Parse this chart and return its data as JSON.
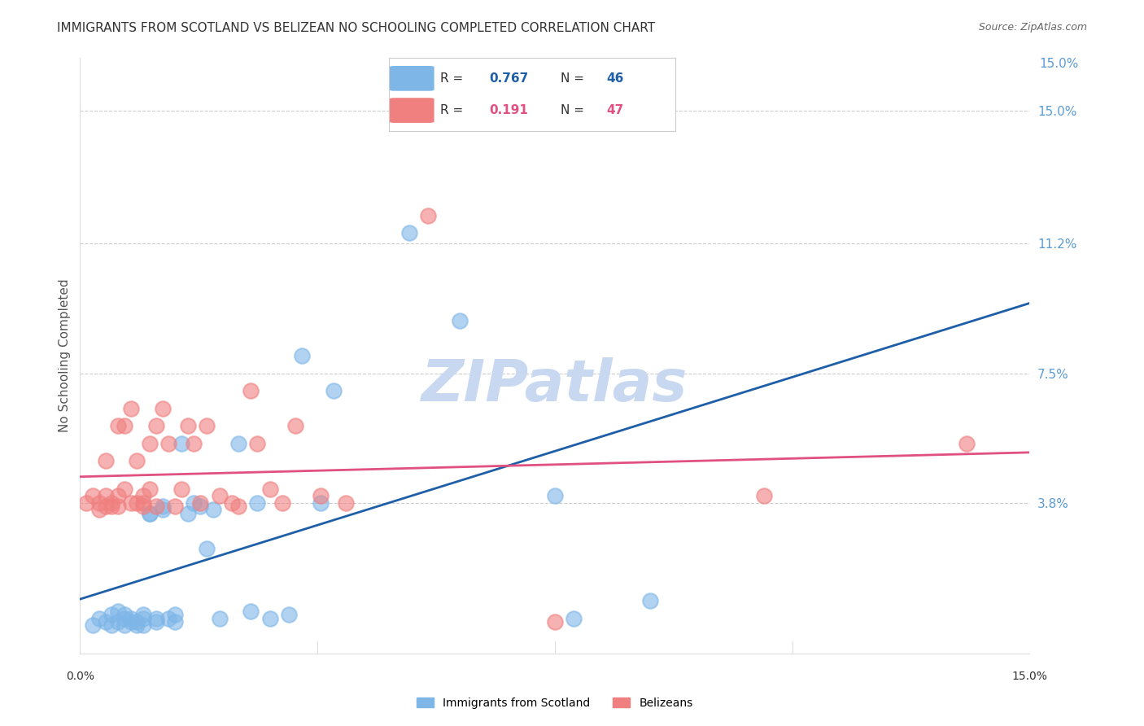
{
  "title": "IMMIGRANTS FROM SCOTLAND VS BELIZEAN NO SCHOOLING COMPLETED CORRELATION CHART",
  "source": "Source: ZipAtlas.com",
  "ylabel": "No Schooling Completed",
  "ytick_vals": [
    0.15,
    0.112,
    0.075,
    0.038
  ],
  "xlim": [
    0.0,
    0.15
  ],
  "ylim": [
    -0.005,
    0.165
  ],
  "legend_scotland_R": "0.767",
  "legend_scotland_N": "46",
  "legend_belize_R": "0.191",
  "legend_belize_N": "47",
  "scotland_color": "#7EB6E8",
  "belize_color": "#F08080",
  "scotland_line_color": "#1E5FA8",
  "belize_line_color": "#E05080",
  "dashed_line_color": "#A8C8E8",
  "grid_color": "#CCCCCC",
  "watermark_color": "#C8D8F0",
  "background_color": "#FFFFFF",
  "title_color": "#333333",
  "axis_label_color": "#555555",
  "right_tick_color": "#5B9BD5",
  "scotland_x": [
    0.002,
    0.003,
    0.004,
    0.005,
    0.005,
    0.006,
    0.006,
    0.007,
    0.007,
    0.007,
    0.008,
    0.008,
    0.009,
    0.009,
    0.01,
    0.01,
    0.01,
    0.011,
    0.011,
    0.012,
    0.012,
    0.013,
    0.013,
    0.014,
    0.015,
    0.015,
    0.016,
    0.017,
    0.018,
    0.019,
    0.02,
    0.021,
    0.022,
    0.025,
    0.027,
    0.028,
    0.03,
    0.033,
    0.035,
    0.038,
    0.04,
    0.052,
    0.06,
    0.075,
    0.078,
    0.09
  ],
  "scotland_y": [
    0.003,
    0.005,
    0.004,
    0.006,
    0.003,
    0.007,
    0.004,
    0.005,
    0.006,
    0.003,
    0.004,
    0.005,
    0.004,
    0.003,
    0.005,
    0.006,
    0.003,
    0.035,
    0.035,
    0.004,
    0.005,
    0.036,
    0.037,
    0.005,
    0.006,
    0.004,
    0.055,
    0.035,
    0.038,
    0.037,
    0.025,
    0.036,
    0.005,
    0.055,
    0.007,
    0.038,
    0.005,
    0.006,
    0.08,
    0.038,
    0.07,
    0.115,
    0.09,
    0.04,
    0.005,
    0.01
  ],
  "belize_x": [
    0.001,
    0.002,
    0.003,
    0.003,
    0.004,
    0.004,
    0.004,
    0.005,
    0.005,
    0.006,
    0.006,
    0.006,
    0.007,
    0.007,
    0.008,
    0.008,
    0.009,
    0.009,
    0.01,
    0.01,
    0.01,
    0.011,
    0.011,
    0.012,
    0.012,
    0.013,
    0.014,
    0.015,
    0.016,
    0.017,
    0.018,
    0.019,
    0.02,
    0.022,
    0.024,
    0.025,
    0.027,
    0.028,
    0.03,
    0.032,
    0.034,
    0.038,
    0.042,
    0.055,
    0.075,
    0.108,
    0.14
  ],
  "belize_y": [
    0.038,
    0.04,
    0.036,
    0.038,
    0.037,
    0.04,
    0.05,
    0.038,
    0.037,
    0.037,
    0.06,
    0.04,
    0.042,
    0.06,
    0.038,
    0.065,
    0.038,
    0.05,
    0.037,
    0.038,
    0.04,
    0.042,
    0.055,
    0.06,
    0.037,
    0.065,
    0.055,
    0.037,
    0.042,
    0.06,
    0.055,
    0.038,
    0.06,
    0.04,
    0.038,
    0.037,
    0.07,
    0.055,
    0.042,
    0.038,
    0.06,
    0.04,
    0.038,
    0.12,
    0.004,
    0.04,
    0.055
  ]
}
